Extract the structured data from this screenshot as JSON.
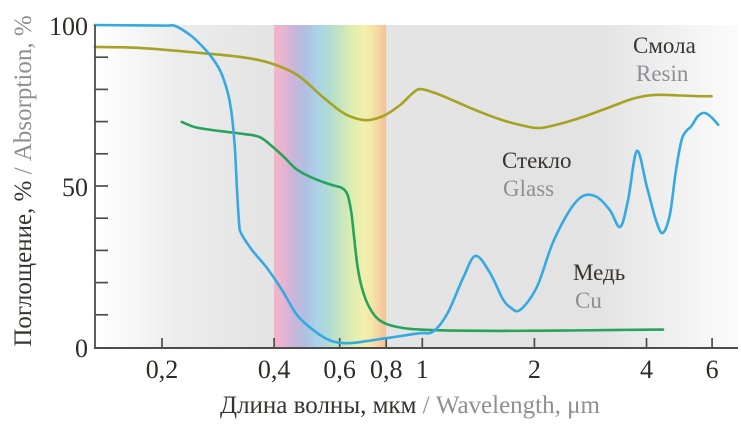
{
  "chart_data": {
    "type": "line",
    "title": "",
    "x_axis": {
      "title_ru": "Длина волны, мкм",
      "title_en": "/ Wavelength, μm",
      "scale": "log",
      "range_um": [
        0.13,
        6.3
      ],
      "ticks": [
        0.2,
        0.4,
        0.6,
        0.8,
        1,
        2,
        4,
        6
      ],
      "tick_labels": [
        "0,2",
        "0,4",
        "0,6",
        "0,8",
        "1",
        "2",
        "4",
        "6"
      ]
    },
    "y_axis": {
      "title_ru": "Поглощение, %",
      "title_en": "/ Absorption, %",
      "range": [
        0,
        100
      ],
      "ticks": [
        0,
        50,
        100
      ],
      "tick_labels": [
        "0",
        "50",
        "100"
      ],
      "minor_tick_step": 10
    },
    "grid": "off",
    "legend": "inline-annotations",
    "series": [
      {
        "id": "resin",
        "name_ru": "Смола",
        "name_en": "Resin",
        "color": "#a6a224",
        "points": [
          [
            0.132,
            93.2
          ],
          [
            0.174,
            92.9
          ],
          [
            0.238,
            91.6
          ],
          [
            0.324,
            90.1
          ],
          [
            0.39,
            88.2
          ],
          [
            0.461,
            84.5
          ],
          [
            0.541,
            77.6
          ],
          [
            0.613,
            72.7
          ],
          [
            0.672,
            70.8
          ],
          [
            0.723,
            70.5
          ],
          [
            0.794,
            72.0
          ],
          [
            0.873,
            75.2
          ],
          [
            0.938,
            78.6
          ],
          [
            0.986,
            80.1
          ],
          [
            1.08,
            78.9
          ],
          [
            1.22,
            76.4
          ],
          [
            1.43,
            73.0
          ],
          [
            1.67,
            70.2
          ],
          [
            1.89,
            68.6
          ],
          [
            2.07,
            68.0
          ],
          [
            2.34,
            69.3
          ],
          [
            2.74,
            71.7
          ],
          [
            3.19,
            74.5
          ],
          [
            3.72,
            77.3
          ],
          [
            4.22,
            78.3
          ],
          [
            4.93,
            78.1
          ],
          [
            5.55,
            77.9
          ],
          [
            5.98,
            77.9
          ]
        ]
      },
      {
        "id": "glass",
        "name_ru": "Стекло",
        "name_en": "Glass",
        "color": "#27a35a",
        "points": [
          [
            0.226,
            69.9
          ],
          [
            0.245,
            68.3
          ],
          [
            0.272,
            67.4
          ],
          [
            0.299,
            66.8
          ],
          [
            0.334,
            66.1
          ],
          [
            0.366,
            65.2
          ],
          [
            0.397,
            62.1
          ],
          [
            0.428,
            58.7
          ],
          [
            0.455,
            55.6
          ],
          [
            0.483,
            53.7
          ],
          [
            0.523,
            51.9
          ],
          [
            0.572,
            50.3
          ],
          [
            0.608,
            49.4
          ],
          [
            0.63,
            47.2
          ],
          [
            0.645,
            41.6
          ],
          [
            0.657,
            33.2
          ],
          [
            0.669,
            25.5
          ],
          [
            0.685,
            19.3
          ],
          [
            0.711,
            13.7
          ],
          [
            0.751,
            9.3
          ],
          [
            0.803,
            7.1
          ],
          [
            0.887,
            5.9
          ],
          [
            0.986,
            5.4
          ],
          [
            1.19,
            5.1
          ],
          [
            1.62,
            5.0
          ],
          [
            2.34,
            5.1
          ],
          [
            3.4,
            5.3
          ],
          [
            4.43,
            5.4
          ]
        ]
      },
      {
        "id": "copper",
        "name_ru": "Медь",
        "name_en": "Cu",
        "color": "#35a9e1",
        "points": [
          [
            0.132,
            100
          ],
          [
            0.2,
            99.8
          ],
          [
            0.217,
            99.7
          ],
          [
            0.238,
            96.9
          ],
          [
            0.253,
            94.1
          ],
          [
            0.269,
            90.7
          ],
          [
            0.286,
            86.0
          ],
          [
            0.3,
            79.2
          ],
          [
            0.308,
            72.0
          ],
          [
            0.314,
            61.2
          ],
          [
            0.318,
            48.8
          ],
          [
            0.322,
            38.8
          ],
          [
            0.326,
            35.4
          ],
          [
            0.349,
            30.1
          ],
          [
            0.383,
            24.5
          ],
          [
            0.42,
            17.7
          ],
          [
            0.461,
            9.9
          ],
          [
            0.509,
            5.3
          ],
          [
            0.554,
            2.5
          ],
          [
            0.599,
            1.3
          ],
          [
            0.656,
            1.3
          ],
          [
            0.746,
            2.2
          ],
          [
            0.873,
            3.4
          ],
          [
            0.986,
            4.3
          ],
          [
            1.07,
            4.8
          ],
          [
            1.17,
            10.6
          ],
          [
            1.29,
            21.7
          ],
          [
            1.39,
            28.3
          ],
          [
            1.52,
            23.0
          ],
          [
            1.64,
            15.2
          ],
          [
            1.72,
            12.4
          ],
          [
            1.83,
            11.5
          ],
          [
            2.03,
            18.6
          ],
          [
            2.24,
            32.3
          ],
          [
            2.49,
            42.5
          ],
          [
            2.7,
            46.9
          ],
          [
            2.94,
            46.6
          ],
          [
            3.19,
            42.5
          ],
          [
            3.4,
            37.3
          ],
          [
            3.57,
            45.7
          ],
          [
            3.77,
            60.9
          ],
          [
            4.01,
            49.7
          ],
          [
            4.24,
            39.4
          ],
          [
            4.42,
            35.4
          ],
          [
            4.62,
            41.0
          ],
          [
            4.79,
            54.3
          ],
          [
            4.97,
            64.3
          ],
          [
            5.12,
            67.1
          ],
          [
            5.28,
            68.6
          ],
          [
            5.5,
            71.7
          ],
          [
            5.73,
            72.7
          ],
          [
            5.97,
            71.4
          ],
          [
            6.23,
            69.0
          ]
        ]
      }
    ],
    "visible_spectrum_band": {
      "from_um": 0.4,
      "to_um": 0.8,
      "gradient_stops": [
        [
          0.0,
          "#f3b3c6"
        ],
        [
          0.08,
          "#e9b4d0"
        ],
        [
          0.17,
          "#c9b5da"
        ],
        [
          0.28,
          "#afc0e0"
        ],
        [
          0.38,
          "#abd1e7"
        ],
        [
          0.48,
          "#aedbd6"
        ],
        [
          0.58,
          "#c3e4c0"
        ],
        [
          0.7,
          "#dfedb0"
        ],
        [
          0.8,
          "#f2f0ac"
        ],
        [
          0.87,
          "#f4e6a7"
        ],
        [
          0.93,
          "#f6d4a3"
        ],
        [
          1.0,
          "#f3bf97"
        ]
      ]
    }
  }
}
